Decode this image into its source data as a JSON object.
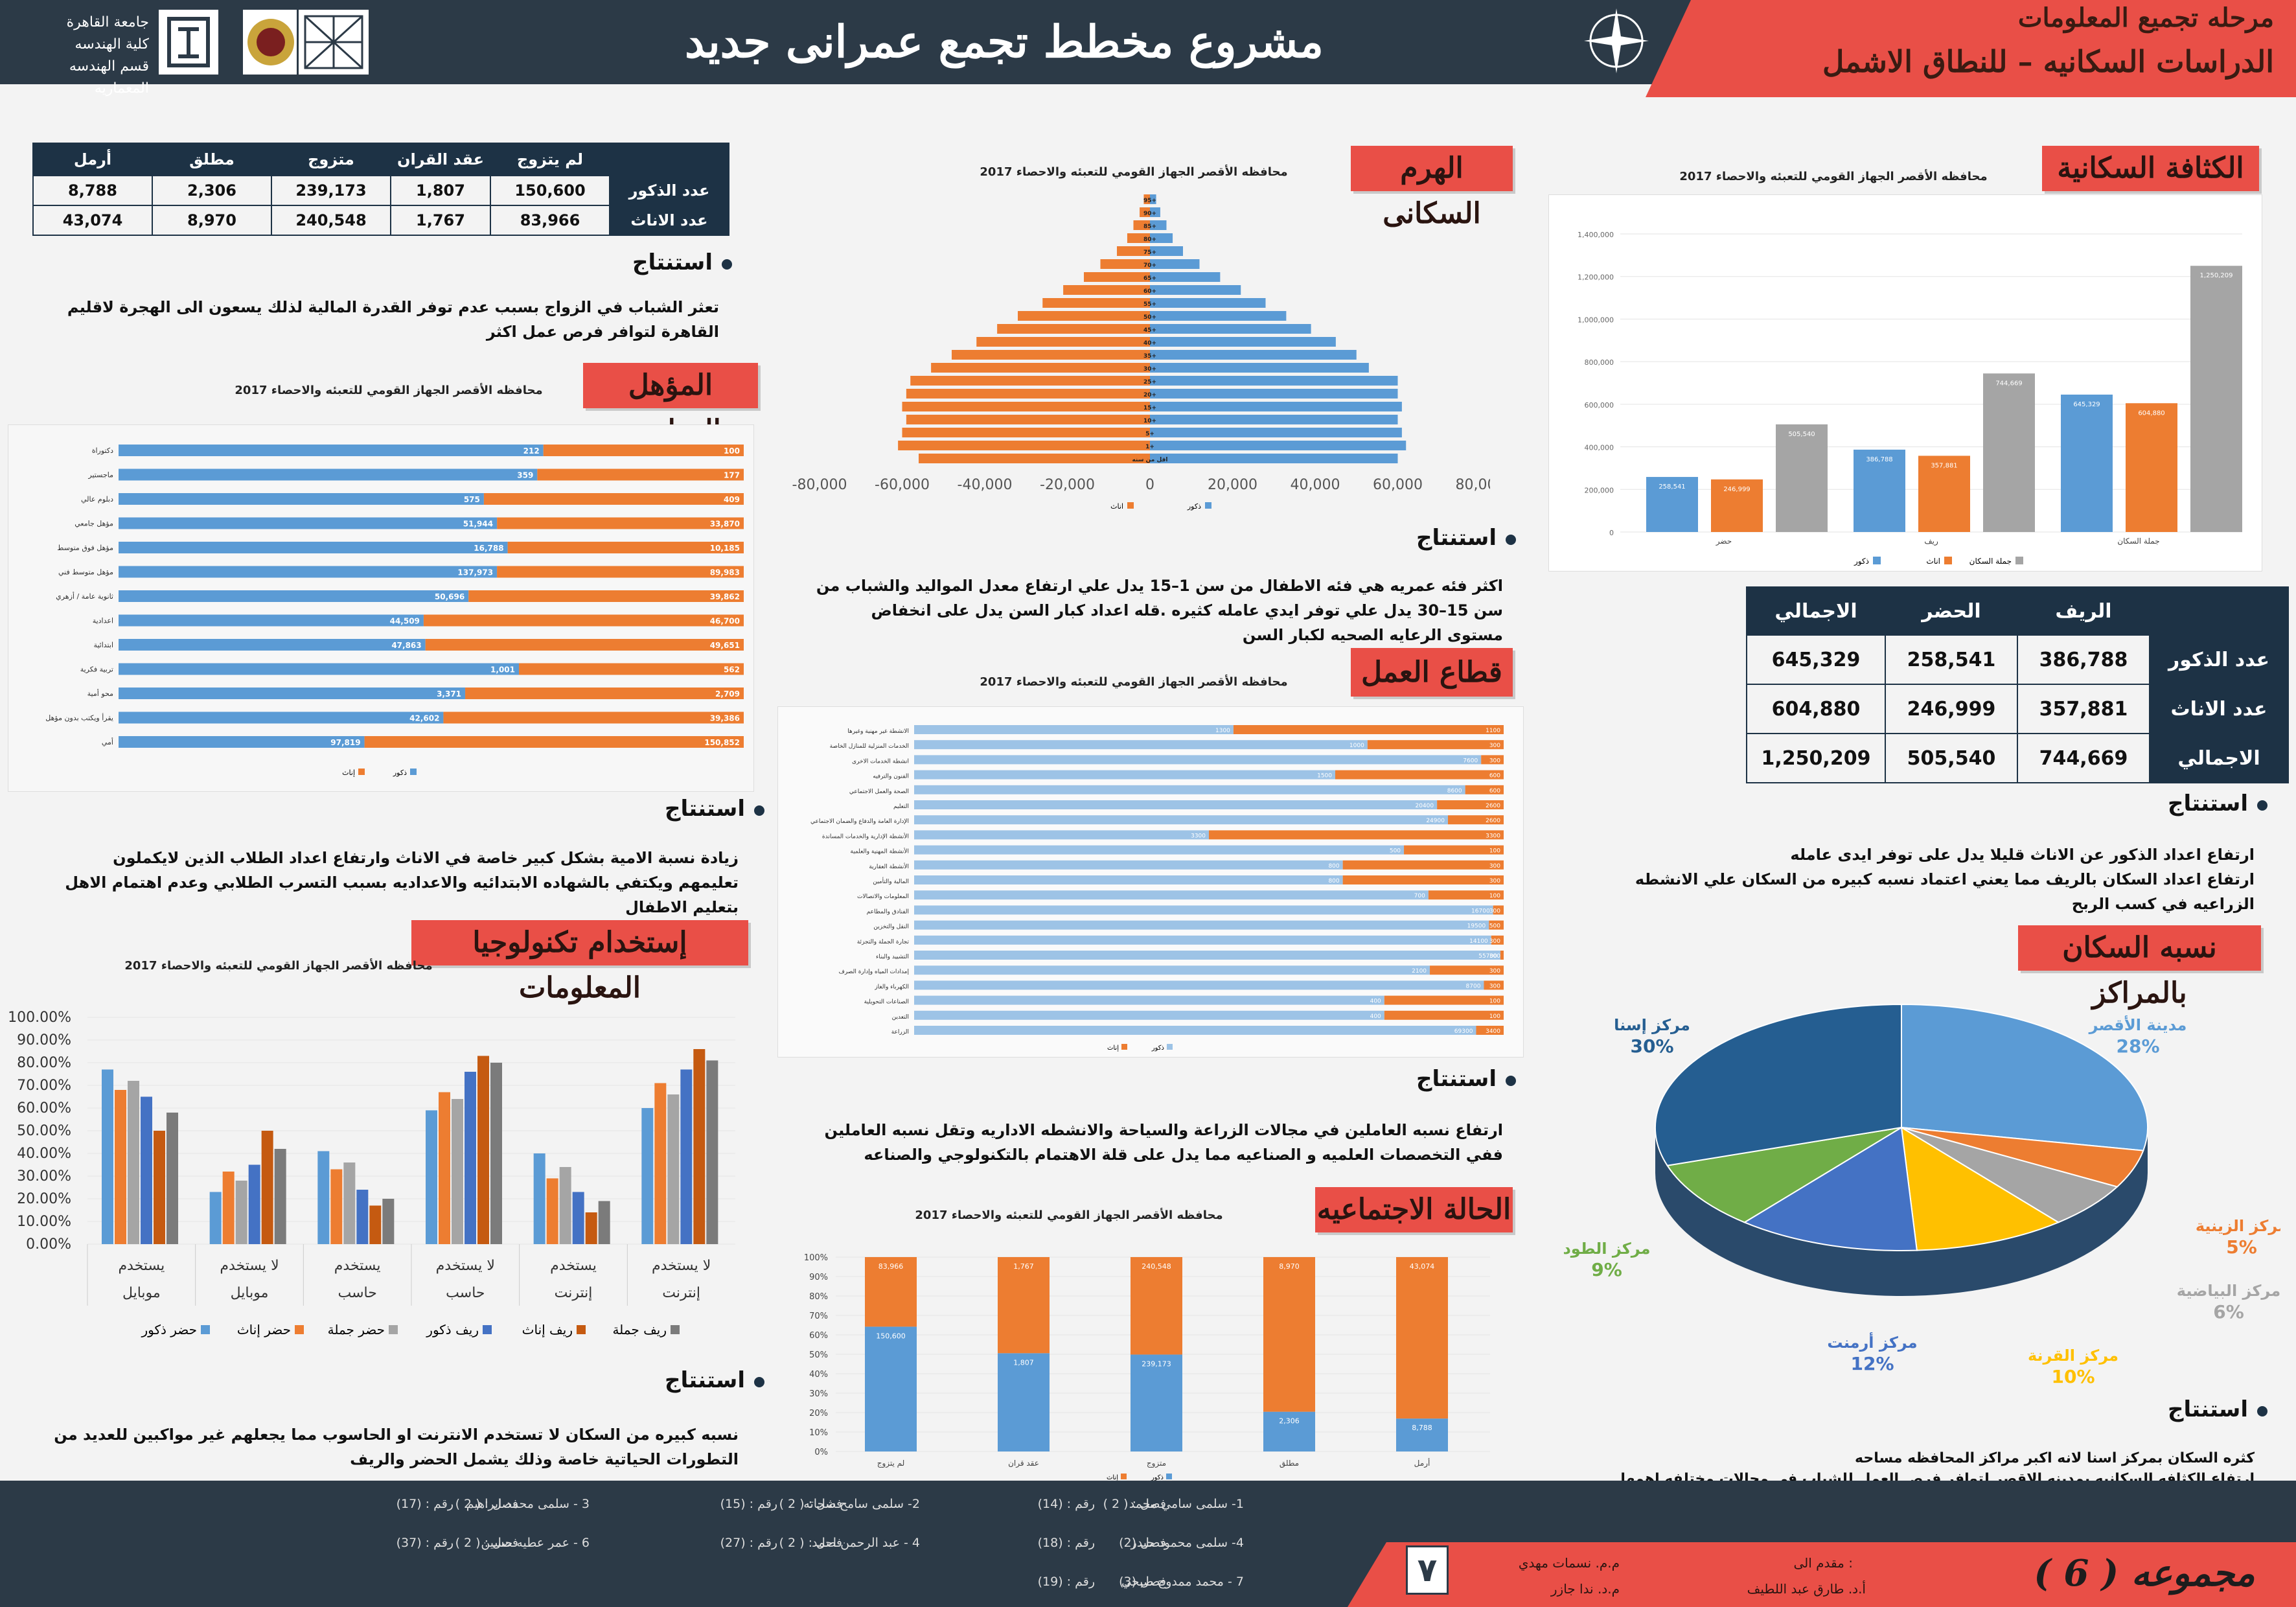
{
  "header": {
    "title": "مشروع مخطط تجمع عمرانى جديد",
    "stage": "مرحله تجميع المعلومات",
    "study": "الدراسات السكانيه – للنطاق الاشمل",
    "university": [
      "جامعة القاهرة",
      "كلية الهندسه",
      "قسم الهندسه المعماريه"
    ]
  },
  "source_text": "محافظه الأقصر الجهاز القومي للتعبئه والاحصاء 2017",
  "conclusion_label": "استنتاج",
  "density": {
    "title": "الكثافة السكانية",
    "chart_data": {
      "type": "bar",
      "categories": [
        "حضر",
        "ريف",
        "جملة السكان"
      ],
      "series": [
        {
          "name": "ذكور",
          "color": "#5b9bd5",
          "values": [
            258541,
            386788,
            645329
          ]
        },
        {
          "name": "اناث",
          "color": "#ed7d31",
          "values": [
            246999,
            357881,
            604880
          ]
        },
        {
          "name": "جملة السكان",
          "color": "#a5a5a5",
          "values": [
            505540,
            744669,
            1250209
          ]
        }
      ],
      "ylim": [
        0,
        1400000
      ],
      "yticks": [
        "0",
        "200,000",
        "400,000",
        "600,000",
        "800,000",
        "1,000,000",
        "1,200,000",
        "1,400,000"
      ],
      "labels": [
        [
          "258,541",
          "246,999",
          "505,540"
        ],
        [
          "386,788",
          "357,881",
          "744,669"
        ],
        [
          "645,329",
          "604,880",
          "1,250,209"
        ]
      ]
    },
    "table": {
      "headers": [
        "الريف",
        "الحضر",
        "الاجمالي"
      ],
      "rows": [
        {
          "label": "عدد الذكور",
          "cells": [
            "386,788",
            "258,541",
            "645,329"
          ]
        },
        {
          "label": "عدد الاناث",
          "cells": [
            "357,881",
            "246,999",
            "604,880"
          ]
        },
        {
          "label": "الاجمالي",
          "cells": [
            "744,669",
            "505,540",
            "1,250,209"
          ]
        }
      ]
    },
    "conclusion": [
      "ارتفاع اعداد الذكور عن الاناث قليلا يدل على توفر ايدى عامله",
      "ارتفاع اعداد السكان بالريف مما يعني اعتماد نسبه كبيره من السكان علي الانشطه الزراعيه في كسب الربح"
    ]
  },
  "centers": {
    "title": "نسبه السكان بالمراكز",
    "chart_data": {
      "type": "pie",
      "slices": [
        {
          "name": "مدينة الأقصر",
          "value": 28,
          "label": "28%",
          "color": "#5b9bd5"
        },
        {
          "name": "مركز الزينية",
          "value": 5,
          "label": "5%",
          "color": "#ed7d31"
        },
        {
          "name": "مركز البياضية",
          "value": 6,
          "label": "6%",
          "color": "#a5a5a5"
        },
        {
          "name": "مركز القرنة",
          "value": 10,
          "label": "10%",
          "color": "#ffc000"
        },
        {
          "name": "مركز أرمنت",
          "value": 12,
          "label": "12%",
          "color": "#4472c4"
        },
        {
          "name": "مركز الطود",
          "value": 9,
          "label": "9%",
          "color": "#70ad47"
        },
        {
          "name": "مركز إسنا",
          "value": 30,
          "label": "30%",
          "color": "#255e91"
        }
      ]
    },
    "conclusion": [
      "كثره السكان بمركز اسنا لانه اكبر مراكز المحافظه مساحه",
      "ارتفاع الكثافه السكانيه بمدينه الاقصر لتوافر فرص العمل للشباب في مجالات مختلفه اهمها السياحه"
    ]
  },
  "pyramid": {
    "title": "الهرم السكانى",
    "chart_data": {
      "type": "bar",
      "orientation": "horizontal",
      "categories": [
        "اقل من سنه",
        "1+",
        "5+",
        "10+",
        "15+",
        "20+",
        "25+",
        "30+",
        "35+",
        "40+",
        "45+",
        "50+",
        "55+",
        "60+",
        "65+",
        "70+",
        "75+",
        "80+",
        "85+",
        "90+",
        "95+"
      ],
      "series": [
        {
          "name": "ذكور",
          "color": "#5b9bd5",
          "values": [
            60000,
            62000,
            61000,
            60000,
            61000,
            60000,
            60000,
            53000,
            50000,
            45000,
            39000,
            33000,
            28000,
            22000,
            17000,
            12000,
            8000,
            5500,
            4000,
            2500,
            1500
          ]
        },
        {
          "name": "اناث",
          "color": "#ed7d31",
          "values": [
            -56000,
            -61000,
            -60000,
            -59000,
            -60000,
            -59000,
            -58000,
            -53000,
            -48000,
            -42000,
            -37000,
            -32000,
            -26000,
            -21000,
            -16000,
            -12000,
            -8000,
            -5500,
            -4000,
            -2500,
            -1500
          ]
        }
      ],
      "xlim": [
        -80000,
        80000
      ],
      "xticks": [
        "-80,000",
        "-60,000",
        "-40,000",
        "-20,000",
        "0",
        "20,000",
        "40,000",
        "60,000",
        "80,000"
      ]
    },
    "conclusion": "اكثر فئه عمريه هي فئه الاطفال من سن 1–15 يدل علي ارتفاع معدل المواليد والشباب من سن 15–30 يدل علي توفر ايدي عامله كثيره .قله اعداد كبار السن يدل على انخفاض مستوى الرعايه الصحيه لكبار السن"
  },
  "work": {
    "title": "قطاع العمل",
    "chart_data": {
      "type": "bar",
      "orientation": "horizontal",
      "stacked": true,
      "categories": [
        "الانشطة غير مهنية وغيرها",
        "الخدمات المنزلية للمنازل الخاصة",
        "انشطة الخدمات الاخرى",
        "الفنون والترفيه",
        "الصحة والعمل الاجتماعي",
        "التعليم",
        "الإدارة العامة والدفاع والضمان الاجتماعي",
        "الأنشطة الإدارية والخدمات المساندة",
        "الأنشطة المهنية والعلمية",
        "الأنشطة العقارية",
        "المالية والتأمين",
        "المعلومات والاتصالات",
        "الفنادق والمطاعم",
        "النقل والتخزين",
        "تجارة الجملة والتجزئة",
        "التشييد والبناء",
        "إمدادات المياه وإدارة الصرف",
        "الكهرباء والغاز",
        "الصناعات التحويلية",
        "التعدين",
        "الزراعة"
      ],
      "series": [
        {
          "name": "ذكور",
          "color": "#9dc3e6",
          "values": [
            1300,
            1000,
            7600,
            1500,
            8600,
            20400,
            24900,
            3300,
            500,
            800,
            800,
            700,
            16700,
            19500,
            14100,
            55700,
            2100,
            8700,
            400,
            400,
            69300
          ]
        },
        {
          "name": "إناث",
          "color": "#ed7d31",
          "values": [
            1100,
            300,
            300,
            600,
            600,
            2600,
            2600,
            3300,
            100,
            300,
            300,
            100,
            300,
            500,
            300,
            300,
            300,
            300,
            100,
            100,
            3400
          ]
        }
      ],
      "labels_m": [
        "1300",
        "1000",
        "7600",
        "1500",
        "8600",
        "20400",
        "24900",
        "3300",
        "500",
        "800",
        "800",
        "700",
        "16700",
        "19500",
        "14100",
        "55700",
        "2100",
        "8700",
        "400",
        "400",
        "69300"
      ],
      "labels_f": [
        "1100",
        "300",
        "300",
        "600",
        "600",
        "2600",
        "2600",
        "3300",
        "100",
        "300",
        "300",
        "100",
        "300",
        "500",
        "300",
        "300",
        "300",
        "300",
        "100",
        "100",
        "3400"
      ]
    },
    "conclusion": "ارتفاع نسبه العاملين في مجالات الزراعة والسياحة والانشطه الاداريه وتقل نسبه العاملين ففي التخصصات العلميه و الصناعيه مما يدل على قلة الاهتمام بالتكنولوجي والصناعه"
  },
  "social": {
    "title": "الحالة الاجتماعيه",
    "chart_data": {
      "type": "bar",
      "stacked": true,
      "percent": true,
      "categories": [
        "لم يتزوج",
        "عقد قران",
        "متزوج",
        "مطلق",
        "أرمل"
      ],
      "series": [
        {
          "name": "ذكور",
          "color": "#5b9bd5",
          "values": [
            150600,
            1807,
            239173,
            2306,
            8788
          ]
        },
        {
          "name": "إناث",
          "color": "#ed7d31",
          "values": [
            83966,
            1767,
            240548,
            8970,
            43074
          ]
        }
      ],
      "labels_m": [
        "150,600",
        "1,807",
        "239,173",
        "2,306",
        "8,788"
      ],
      "labels_f": [
        "83,966",
        "1,767",
        "240,548",
        "8,970",
        "43,074"
      ],
      "yticks": [
        "0%",
        "10%",
        "20%",
        "30%",
        "40%",
        "50%",
        "60%",
        "70%",
        "80%",
        "90%",
        "100%"
      ]
    },
    "table": {
      "headers": [
        "لم يتزوج",
        "عقد القران",
        "متزوج",
        "مطلق",
        "أرمل"
      ],
      "rows": [
        {
          "label": "عدد الذكور",
          "cells": [
            "150,600",
            "1,807",
            "239,173",
            "2,306",
            "8,788"
          ]
        },
        {
          "label": "عدد الاناث",
          "cells": [
            "83,966",
            "1,767",
            "240,548",
            "8,970",
            "43,074"
          ]
        }
      ]
    },
    "conclusion": "تعثر الشباب في الزواج بسبب عدم توفر القدرة المالية لذلك يسعون الى الهجرة لاقليم القاهرة لتوافر فرص عمل اكثر"
  },
  "education": {
    "title": "المؤهل الدراسى",
    "chart_data": {
      "type": "bar",
      "orientation": "horizontal",
      "stacked": true,
      "categories": [
        "دكتوراة",
        "ماجستير",
        "دبلوم عالي",
        "مؤهل جامعي",
        "مؤهل فوق متوسط",
        "مؤهل متوسط فني",
        "ثانوية عامة / أزهري",
        "اعدادية",
        "ابتدائية",
        "تربية فكرية",
        "محو أمية",
        "يقرأ ويكتب بدون مؤهل",
        "أمي"
      ],
      "series": [
        {
          "name": "ذكور",
          "color": "#5b9bd5",
          "values": [
            212,
            359,
            575,
            51944,
            16788,
            137973,
            50696,
            44509,
            47863,
            1001,
            3371,
            42602,
            97819
          ]
        },
        {
          "name": "إناث",
          "color": "#ed7d31",
          "values": [
            100,
            177,
            409,
            33870,
            10185,
            89983,
            39862,
            46700,
            49651,
            562,
            2709,
            39386,
            150852
          ]
        }
      ],
      "labels_m": [
        "212",
        "359",
        "575",
        "51,944",
        "16,788",
        "137,973",
        "50,696",
        "44,509",
        "47,863",
        "1,001",
        "3,371",
        "42,602",
        "97,819"
      ],
      "labels_f": [
        "100",
        "177",
        "409",
        "33,870",
        "10,185",
        "89,983",
        "39,862",
        "46,700",
        "49,651",
        "562",
        "2,709",
        "39,386",
        "150,852"
      ]
    },
    "conclusion": "زيادة نسبة الامية بشكل كبير خاصة في الاناث وارتفاع اعداد الطلاب الذين لايكملون تعليمهم ويكتفي بالشهاده الابتدائيه والاعداديه بسبب التسرب الطلابي وعدم اهتمام الاهل بتعليم الاطفال"
  },
  "it": {
    "title": "إستخدام تكنولوجيا المعلومات",
    "chart_data": {
      "type": "bar",
      "categories": [
        "يستخدم",
        "لا يستخدم",
        "يستخدم",
        "لا يستخدم",
        "يستخدم",
        "لا يستخدم"
      ],
      "groups": [
        "موبايل",
        "موبايل",
        "حاسب",
        "حاسب",
        "إنترنت",
        "إنترنت"
      ],
      "series": [
        {
          "name": "حضر ذكور",
          "color": "#5b9bd5",
          "values": [
            0.77,
            0.23,
            0.41,
            0.59,
            0.4,
            0.6
          ]
        },
        {
          "name": "حضر إناث",
          "color": "#ed7d31",
          "values": [
            0.68,
            0.32,
            0.33,
            0.67,
            0.29,
            0.71
          ]
        },
        {
          "name": "حضر جملة",
          "color": "#a5a5a5",
          "values": [
            0.72,
            0.28,
            0.36,
            0.64,
            0.34,
            0.66
          ]
        },
        {
          "name": "ريف ذكور",
          "color": "#4472c4",
          "values": [
            0.65,
            0.35,
            0.24,
            0.76,
            0.23,
            0.77
          ]
        },
        {
          "name": "ريف إناث",
          "color": "#c55a11",
          "values": [
            0.5,
            0.5,
            0.17,
            0.83,
            0.14,
            0.86
          ]
        },
        {
          "name": "ريف جملة",
          "color": "#7b7b7b",
          "values": [
            0.58,
            0.42,
            0.2,
            0.8,
            0.19,
            0.81
          ]
        }
      ],
      "yticks": [
        "0.00%",
        "10.00%",
        "20.00%",
        "30.00%",
        "40.00%",
        "50.00%",
        "60.00%",
        "70.00%",
        "80.00%",
        "90.00%",
        "100.00%"
      ]
    },
    "conclusion": "نسبه كبيره من السكان لا تستخدم الانترنت او الحاسوب مما يجعلهم غير مواكبين للعديد من التطورات الحياتية خاصة وذلك يشمل الحضر والريف"
  },
  "footer": {
    "members": [
      [
        "1- سلمى سامي محمد",
        "فصل : ( 2 )",
        "رقم : (14)"
      ],
      [
        "2- سلمى سامح شحاته",
        "فصل : ( 2 )",
        "رقم : (15)"
      ],
      [
        "3 - سلمى محمد ابراهيم",
        "فصل : ( 2 )",
        "رقم : (17)"
      ],
      [
        "4- سلمى محمود حيدر",
        "فصل (2)",
        "رقم : (18)"
      ],
      [
        "4 - عبد الرحمن احمد",
        "فصل : ( 2 )",
        "رقم : (27)"
      ],
      [
        "6 - عمر عطيه حسين",
        "فصل : ( 2 )",
        "رقم : (37)"
      ],
      [
        "7 - محمد ممدوح صبحي",
        "فصل (3)",
        "رقم : (19)"
      ]
    ],
    "page": "٧",
    "presented_to": "مقدم الى :",
    "professors": [
      "أ.د. طارق عبد اللطيف",
      "م.م. نسمات مهدي",
      "م.د. ندا جازر"
    ],
    "group": "مجموعه ( 6 )"
  }
}
